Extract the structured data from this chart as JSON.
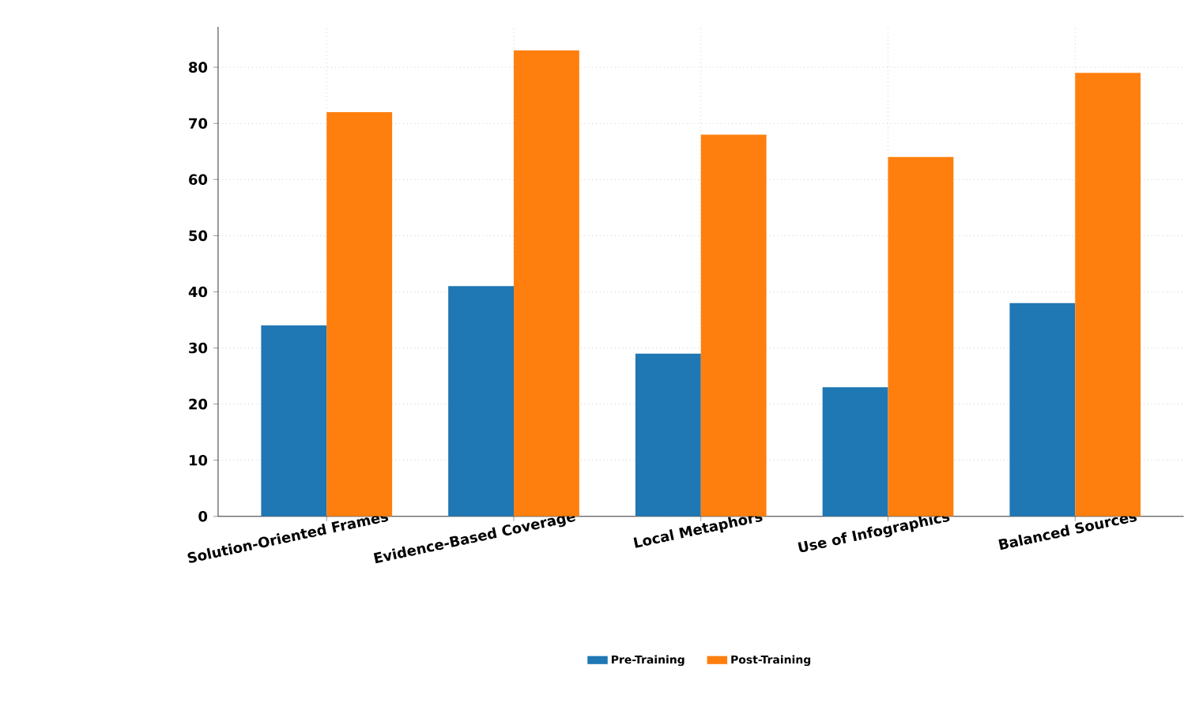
{
  "chart_data": {
    "type": "bar",
    "categories": [
      "Solution-Oriented Frames",
      "Evidence-Based Coverage",
      "Local Metaphors",
      "Use of Infographics",
      "Balanced Sources"
    ],
    "series": [
      {
        "name": "Pre-Training",
        "color": "#1f77b4",
        "values": [
          34,
          41,
          29,
          23,
          38
        ]
      },
      {
        "name": "Post-Training",
        "color": "#ff7f0e",
        "values": [
          72,
          83,
          68,
          64,
          79
        ]
      }
    ],
    "ylim": [
      0,
      87.2
    ],
    "yticks": [
      0,
      10,
      20,
      30,
      40,
      50,
      60,
      70,
      80
    ],
    "grid": true,
    "legend": "bottom"
  }
}
